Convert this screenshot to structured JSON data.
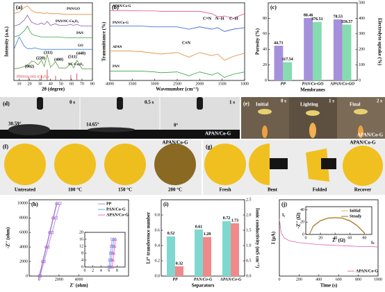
{
  "chart_data": [
    {
      "label": "(a)",
      "type": "line",
      "x": [
        5,
        10,
        15,
        18,
        20,
        22,
        25,
        28,
        31.3,
        34,
        36.8,
        40,
        44.8,
        48,
        55,
        59.4,
        62,
        65.2,
        70,
        75,
        80
      ],
      "series": [
        {
          "name": "PAN/GO",
          "color": "#e08a3c",
          "values": [
            8.6,
            8.8,
            9.4,
            9.6,
            9.3,
            9.0,
            8.8,
            8.7,
            8.7,
            8.6,
            8.7,
            8.6,
            8.6,
            8.6,
            8.5,
            8.5,
            8.5,
            8.5,
            8.5,
            8.5,
            8.5
          ]
        },
        {
          "name": "PAN/NC-Co₃O₄",
          "color": "#8a5aa8",
          "values": [
            7.0,
            7.2,
            7.8,
            8.4,
            7.9,
            7.5,
            7.3,
            7.2,
            7.4,
            7.2,
            7.6,
            7.1,
            7.3,
            7.1,
            7.1,
            7.2,
            7.1,
            7.2,
            7.0,
            7.0,
            7.0
          ]
        },
        {
          "name": "PAN",
          "color": "#3aa04a",
          "values": [
            5.6,
            5.8,
            6.4,
            7.0,
            6.4,
            6.0,
            5.8,
            5.7,
            5.6,
            5.6,
            5.6,
            5.6,
            5.6,
            5.6,
            5.5,
            5.5,
            5.5,
            5.5,
            5.5,
            5.5,
            5.5
          ]
        },
        {
          "name": "GO",
          "color": "#3a7bd5",
          "values": [
            4.0,
            5.6,
            4.4,
            4.1,
            4.1,
            4.1,
            4.2,
            4.1,
            4.0,
            4.0,
            4.0,
            4.0,
            4.0,
            4.0,
            4.0,
            4.0,
            4.0,
            4.0,
            4.0,
            4.0,
            4.0
          ]
        },
        {
          "name": "NC-Co₃O₄",
          "color": "#5a9a3a",
          "values": [
            1.5,
            1.6,
            1.8,
            2.0,
            2.2,
            2.5,
            2.4,
            2.0,
            2.6,
            1.8,
            3.3,
            1.7,
            2.4,
            1.6,
            1.6,
            2.2,
            1.6,
            2.6,
            1.5,
            1.5,
            1.5
          ]
        }
      ],
      "reference": {
        "name": "PDF#43-1003 (Co₃O₄)",
        "color": "#d03030",
        "x": [
          19,
          31.3,
          36.8,
          44.8,
          59.4,
          65.2
        ],
        "values": [
          0.5,
          0.7,
          1.4,
          0.6,
          0.7,
          0.9
        ]
      },
      "annotations": [
        "(002)",
        "(220)",
        "(311)",
        "(400)",
        "(511)",
        "(440)"
      ],
      "xlabel": "2θ (degree)",
      "ylabel": "Intensity (a.u.)",
      "xlim": [
        5,
        80
      ],
      "xticks": [
        10,
        20,
        30,
        40,
        50,
        60,
        70,
        80
      ],
      "ylim": [
        0,
        10
      ]
    },
    {
      "label": "(b)",
      "type": "line",
      "x": [
        4000,
        3600,
        3300,
        3000,
        2870,
        2500,
        2240,
        2000,
        1730,
        1600,
        1450,
        1250,
        1000
      ],
      "series": [
        {
          "name": "APAN/Co-G",
          "color": "#e0508a",
          "values": [
            9.0,
            9.0,
            8.95,
            8.95,
            8.9,
            8.9,
            8.9,
            8.9,
            8.6,
            8.2,
            8.3,
            8.0,
            8.6
          ]
        },
        {
          "name": "PAN/Co-G",
          "color": "#2a5ad0",
          "values": [
            7.0,
            7.0,
            7.0,
            6.9,
            6.9,
            6.9,
            6.6,
            6.9,
            6.6,
            6.8,
            6.3,
            6.6,
            6.8
          ]
        },
        {
          "name": "APAN",
          "color": "#e08a3c",
          "values": [
            3.8,
            3.8,
            3.7,
            3.5,
            3.4,
            3.6,
            3.0,
            3.6,
            3.2,
            3.4,
            2.6,
            3.1,
            3.5
          ]
        },
        {
          "name": "PAN",
          "color": "#3aa04a",
          "values": [
            1.2,
            1.2,
            1.2,
            1.1,
            1.0,
            1.1,
            0.6,
            1.1,
            0.7,
            1.0,
            0.4,
            0.8,
            1.1
          ]
        }
      ],
      "annotations": [
        "C=N",
        "N−H",
        "C−H",
        "C≡N"
      ],
      "xlabel": "Wavenumber (cm⁻¹)",
      "ylabel": "Transmittance (%)",
      "xlim": [
        4000,
        1000
      ],
      "xticks": [
        4000,
        3500,
        3000,
        2500,
        2000,
        1500,
        1000
      ],
      "ylim": [
        0,
        10
      ]
    },
    {
      "label": "(c)",
      "type": "bar",
      "categories": [
        "PP",
        "PAN/Co-GO",
        "APAN/Co-GO"
      ],
      "series": [
        {
          "color": "#a590dc",
          "values": [
            44.71,
            80.46,
            78.53
          ]
        },
        {
          "color": "#86dbb0",
          "axis": "y2",
          "values": [
            117.54,
            376.51,
            359.57
          ]
        }
      ],
      "xlabel": "Membranes",
      "ylabel": "Porosity (%)",
      "y2label": "Electrolyte uptake (%)",
      "ylim": [
        0,
        100
      ],
      "yticks": [
        0,
        20,
        40,
        60,
        80
      ],
      "y2lim": [
        0,
        500
      ],
      "y2ticks": [
        0,
        100,
        200,
        300,
        400,
        500
      ]
    },
    {
      "label": "(h)",
      "type": "scatter",
      "legend": "upper right",
      "series": [
        {
          "name": "PP",
          "color": "#9b7de0",
          "marker": "square",
          "x": [
            100,
            500,
            900,
            1300,
            1700,
            2100
          ],
          "values": [
            0,
            2000,
            4000,
            6000,
            8000,
            10000
          ]
        },
        {
          "name": "PAN/Co-G",
          "color": "#4aa0e0",
          "marker": "circle",
          "x": [
            0,
            350,
            700,
            1050,
            1400,
            1750
          ],
          "values": [
            0,
            2000,
            4000,
            6000,
            8000,
            10000
          ]
        },
        {
          "name": "APAN/Co-G",
          "color": "#e85ac8",
          "marker": "triangle",
          "x": [
            50,
            400,
            750,
            1100,
            1450,
            1800
          ],
          "values": [
            0,
            2000,
            4000,
            6000,
            8000,
            10000
          ]
        }
      ],
      "xlabel": "Z' (ohm)",
      "ylabel": "-Z'' (ohm)",
      "xlim": [
        -1000,
        9000
      ],
      "xticks": [
        0,
        2000,
        4000
      ],
      "ylim": [
        0,
        10500
      ],
      "yticks": [
        0,
        2000,
        4000,
        6000,
        8000,
        10000
      ],
      "inset": {
        "type": "scatter",
        "series": [
          {
            "color": "#9b7de0",
            "marker": "square",
            "x": [
              6.0,
              6.2,
              6.4,
              6.6,
              6.8
            ],
            "values": [
              0,
              4,
              8,
              12,
              16
            ]
          },
          {
            "color": "#4aa0e0",
            "marker": "circle",
            "x": [
              6.4,
              6.6,
              6.8,
              7.0,
              7.2
            ],
            "values": [
              0,
              4,
              8,
              12,
              16
            ]
          },
          {
            "color": "#e85ac8",
            "marker": "triangle",
            "x": [
              6.8,
              7.0,
              7.2,
              7.4,
              7.6
            ],
            "values": [
              0,
              4,
              8,
              12,
              16
            ]
          }
        ],
        "xlim": [
          0,
          10
        ],
        "xticks": [
          0,
          2,
          4,
          6,
          8
        ],
        "ylim": [
          0,
          20
        ],
        "yticks": [
          0,
          4,
          8,
          12,
          16,
          20
        ]
      }
    },
    {
      "label": "(i)",
      "type": "bar",
      "categories": [
        "PP",
        "PAN/Co-G",
        "APAN/Co-G"
      ],
      "series": [
        {
          "color": "#7fd8d0",
          "values": [
            0.52,
            0.61,
            0.72
          ]
        },
        {
          "color": "#f08a8a",
          "axis": "y2",
          "values": [
            0.32,
            1.28,
            1.73
          ]
        }
      ],
      "xlabel": "Separators",
      "ylabel": "Li⁺ transference number",
      "y2label": "Ionic conductivity (mS cm⁻¹)",
      "ylim": [
        0,
        1.0
      ],
      "yticks": [
        {
          "value": 0,
          "label": "0.0"
        },
        0.2,
        0.4,
        0.6,
        0.8
      ],
      "y2lim": [
        0,
        2.5
      ],
      "y2ticks": [
        {
          "value": 0,
          "label": "0.0"
        },
        0.5,
        {
          "value": 1,
          "label": "1.0"
        },
        1.5,
        {
          "value": 2,
          "label": "2.0"
        },
        2.5
      ]
    },
    {
      "label": "(j)",
      "type": "line",
      "legend": "lower right",
      "x": [
        0,
        10,
        20,
        50,
        100,
        200,
        300,
        400,
        500,
        600,
        700,
        800,
        900,
        1000
      ],
      "series": [
        {
          "name": "APAN/Co-G",
          "color": "#e060a8",
          "values": [
            9.0,
            8.2,
            7.5,
            7.0,
            6.7,
            6.5,
            6.4,
            6.3,
            6.25,
            6.2,
            6.15,
            6.1,
            6.1,
            6.05
          ]
        }
      ],
      "annotations": [
        "I₀",
        "Iₛ"
      ],
      "xlabel": "Time (s)",
      "ylabel": "I (μA)",
      "xlim": [
        0,
        1000
      ],
      "xticks": [
        0,
        200,
        400,
        600,
        800,
        1000
      ],
      "ylim": [
        3,
        11
      ],
      "inset": {
        "type": "line",
        "legend": "upper right",
        "x": [
          5,
          10,
          20,
          30,
          40,
          50,
          60,
          70,
          80
        ],
        "series": [
          {
            "name": "Initial",
            "color": "#e0b040",
            "values": [
              0,
              14,
              23,
              27,
              28,
              27,
              23,
              15,
              3
            ]
          },
          {
            "name": "Steady",
            "color": "#8a5a2a",
            "values": [
              0,
              13,
              22,
              26,
              27,
              26,
              22,
              14,
              2
            ]
          }
        ],
        "xlabel": "Z' (Ω)",
        "ylabel": "-Z'' (Ω)",
        "xlim": [
          0,
          90
        ],
        "xticks": [
          0,
          20,
          40,
          60,
          80
        ],
        "ylim": [
          0,
          45
        ],
        "yticks": [
          0,
          20,
          40
        ]
      }
    }
  ],
  "photos": {
    "d": {
      "label": "(d)",
      "times": [
        "0 s",
        "0.5 s",
        "1 s"
      ],
      "angles": [
        "30.59°",
        "14.65°",
        "0°"
      ],
      "sample": "APAN/Co-G"
    },
    "e": {
      "label": "(e)",
      "stages": [
        "Initial",
        "Lighting",
        "Final"
      ],
      "times": [
        "0 s",
        "1 s",
        "2 s"
      ],
      "sample": "APAN/Co-G"
    },
    "f": {
      "label": "(f)",
      "conditions": [
        "Untreated",
        "100 °C",
        "150 °C",
        "200 °C"
      ],
      "sample": "APAN/Co-G"
    },
    "g": {
      "label": "(g)",
      "states": [
        "Fresh",
        "Bent",
        "Folded",
        "Recover"
      ],
      "sample": "APAN/Co-G"
    }
  }
}
